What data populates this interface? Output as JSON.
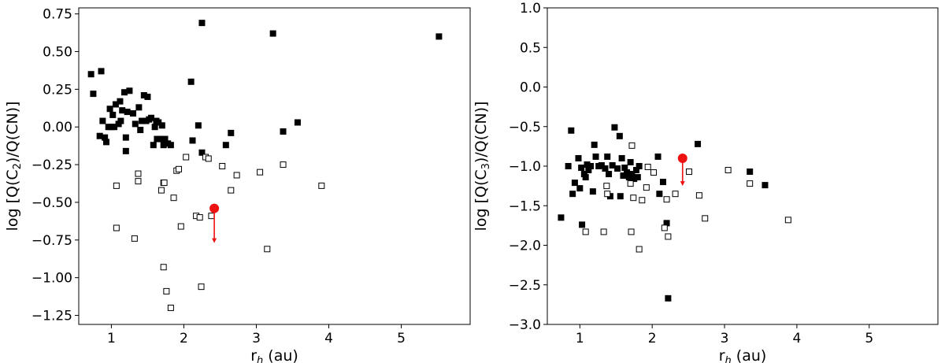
{
  "chart_data": [
    {
      "type": "scatter",
      "xlabel": "r_h (au)",
      "ylabel": "log [Q(C2)/Q(CN)]",
      "xlim": [
        0.55,
        5.95
      ],
      "ylim": [
        -1.31,
        0.79
      ],
      "xticks": [
        1,
        2,
        3,
        4,
        5
      ],
      "yticks": [
        -1.25,
        -1.0,
        -0.75,
        -0.5,
        -0.25,
        0.0,
        0.25,
        0.5,
        0.75
      ],
      "ytick_labels": [
        "−1.25",
        "−1.00",
        "−0.75",
        "−0.50",
        "−0.25",
        "0.00",
        "0.25",
        "0.50",
        "0.75"
      ],
      "grid": false,
      "series": [
        {
          "marker": "filled-square",
          "color": "#000000",
          "points": [
            [
              0.72,
              0.35
            ],
            [
              0.75,
              0.22
            ],
            [
              0.86,
              0.37
            ],
            [
              0.88,
              0.04
            ],
            [
              0.93,
              -0.1
            ],
            [
              0.96,
              0.0
            ],
            [
              0.98,
              0.12
            ],
            [
              1.0,
              0.0
            ],
            [
              1.02,
              0.08
            ],
            [
              1.04,
              0.0
            ],
            [
              1.06,
              0.15
            ],
            [
              1.1,
              0.02
            ],
            [
              1.12,
              0.17
            ],
            [
              1.13,
              0.04
            ],
            [
              1.15,
              0.11
            ],
            [
              1.18,
              0.23
            ],
            [
              1.2,
              -0.07
            ],
            [
              1.22,
              0.1
            ],
            [
              1.25,
              0.24
            ],
            [
              1.3,
              0.09
            ],
            [
              1.33,
              0.02
            ],
            [
              1.38,
              0.13
            ],
            [
              1.42,
              0.04
            ],
            [
              1.45,
              0.21
            ],
            [
              1.48,
              0.04
            ],
            [
              1.5,
              0.2
            ],
            [
              1.52,
              0.05
            ],
            [
              1.55,
              0.06
            ],
            [
              1.58,
              -0.12
            ],
            [
              1.6,
              0.0
            ],
            [
              1.62,
              0.04
            ],
            [
              1.63,
              -0.08
            ],
            [
              1.65,
              0.03
            ],
            [
              1.68,
              -0.08
            ],
            [
              1.7,
              0.01
            ],
            [
              1.72,
              -0.12
            ],
            [
              1.74,
              -0.08
            ],
            [
              1.78,
              -0.11
            ],
            [
              1.82,
              -0.12
            ],
            [
              2.1,
              0.3
            ],
            [
              2.12,
              -0.09
            ],
            [
              2.2,
              0.01
            ],
            [
              2.25,
              -0.17
            ],
            [
              2.25,
              0.69
            ],
            [
              2.65,
              -0.04
            ],
            [
              2.58,
              -0.12
            ],
            [
              3.23,
              0.62
            ],
            [
              3.37,
              -0.03
            ],
            [
              3.57,
              0.03
            ],
            [
              5.52,
              0.6
            ],
            [
              0.84,
              -0.06
            ],
            [
              0.91,
              -0.07
            ],
            [
              1.2,
              -0.16
            ],
            [
              1.4,
              -0.02
            ]
          ]
        },
        {
          "marker": "open-square",
          "color": "#000000",
          "points": [
            [
              1.07,
              -0.39
            ],
            [
              1.07,
              -0.67
            ],
            [
              1.32,
              -0.74
            ],
            [
              1.37,
              -0.31
            ],
            [
              1.37,
              -0.36
            ],
            [
              1.69,
              -0.42
            ],
            [
              1.72,
              -0.37
            ],
            [
              1.72,
              -0.93
            ],
            [
              1.73,
              -0.37
            ],
            [
              1.76,
              -1.09
            ],
            [
              1.82,
              -1.2
            ],
            [
              1.86,
              -0.47
            ],
            [
              1.9,
              -0.29
            ],
            [
              1.93,
              -0.28
            ],
            [
              1.96,
              -0.66
            ],
            [
              2.03,
              -0.2
            ],
            [
              2.17,
              -0.59
            ],
            [
              2.22,
              -0.6
            ],
            [
              2.24,
              -1.06
            ],
            [
              2.3,
              -0.2
            ],
            [
              2.34,
              -0.21
            ],
            [
              2.38,
              -0.59
            ],
            [
              2.53,
              -0.26
            ],
            [
              2.65,
              -0.42
            ],
            [
              2.73,
              -0.32
            ],
            [
              3.05,
              -0.3
            ],
            [
              3.15,
              -0.81
            ],
            [
              3.37,
              -0.25
            ],
            [
              3.9,
              -0.39
            ]
          ]
        },
        {
          "marker": "red-circle-upper-limit",
          "color": "#ee1111",
          "points": [
            [
              2.42,
              -0.54
            ]
          ],
          "arrow_to": -0.77
        }
      ]
    },
    {
      "type": "scatter",
      "xlabel": "r_h (au)",
      "ylabel": "log [Q(C3)/Q(CN)]",
      "xlim": [
        0.55,
        5.95
      ],
      "ylim": [
        -3.0,
        1.0
      ],
      "xticks": [
        1,
        2,
        3,
        4,
        5
      ],
      "yticks": [
        -3.0,
        -2.5,
        -2.0,
        -1.5,
        -1.0,
        -0.5,
        0.0,
        0.5,
        1.0
      ],
      "ytick_labels": [
        "−3.0",
        "−2.5",
        "−2.0",
        "−1.5",
        "−1.0",
        "−0.5",
        "0.0",
        "0.5",
        "1.0"
      ],
      "grid": false,
      "series": [
        {
          "marker": "filled-square",
          "color": "#000000",
          "points": [
            [
              0.74,
              -1.65
            ],
            [
              0.84,
              -1.0
            ],
            [
              0.88,
              -0.55
            ],
            [
              0.9,
              -1.35
            ],
            [
              0.93,
              -1.21
            ],
            [
              0.98,
              -0.9
            ],
            [
              1.0,
              -1.28
            ],
            [
              1.02,
              -1.02
            ],
            [
              1.03,
              -1.74
            ],
            [
              1.06,
              -1.1
            ],
            [
              1.08,
              -1.14
            ],
            [
              1.1,
              -0.98
            ],
            [
              1.12,
              -1.05
            ],
            [
              1.15,
              -1.0
            ],
            [
              1.18,
              -1.32
            ],
            [
              1.2,
              -0.73
            ],
            [
              1.22,
              -0.88
            ],
            [
              1.26,
              -1.0
            ],
            [
              1.3,
              -0.99
            ],
            [
              1.35,
              -1.03
            ],
            [
              1.38,
              -0.88
            ],
            [
              1.4,
              -1.1
            ],
            [
              1.42,
              -1.38
            ],
            [
              1.45,
              -0.99
            ],
            [
              1.48,
              -0.51
            ],
            [
              1.52,
              -1.03
            ],
            [
              1.55,
              -0.62
            ],
            [
              1.56,
              -1.38
            ],
            [
              1.58,
              -0.9
            ],
            [
              1.6,
              -1.12
            ],
            [
              1.62,
              -1.02
            ],
            [
              1.65,
              -1.08
            ],
            [
              1.68,
              -1.14
            ],
            [
              1.7,
              -0.95
            ],
            [
              1.72,
              -1.1
            ],
            [
              1.75,
              -1.16
            ],
            [
              1.78,
              -1.05
            ],
            [
              1.8,
              -1.14
            ],
            [
              1.82,
              -1.0
            ],
            [
              2.08,
              -0.88
            ],
            [
              2.1,
              -1.35
            ],
            [
              2.15,
              -1.2
            ],
            [
              2.2,
              -1.72
            ],
            [
              2.22,
              -2.67
            ],
            [
              2.63,
              -0.72
            ],
            [
              3.35,
              -1.07
            ],
            [
              3.56,
              -1.24
            ]
          ]
        },
        {
          "marker": "open-square",
          "color": "#000000",
          "points": [
            [
              1.08,
              -1.83
            ],
            [
              1.33,
              -1.83
            ],
            [
              1.37,
              -1.25
            ],
            [
              1.38,
              -1.35
            ],
            [
              1.7,
              -1.22
            ],
            [
              1.71,
              -1.83
            ],
            [
              1.72,
              -0.74
            ],
            [
              1.74,
              -1.4
            ],
            [
              1.82,
              -2.05
            ],
            [
              1.86,
              -1.43
            ],
            [
              1.92,
              -1.27
            ],
            [
              1.94,
              -1.01
            ],
            [
              2.02,
              -1.08
            ],
            [
              2.17,
              -1.78
            ],
            [
              2.2,
              -1.42
            ],
            [
              2.22,
              -1.89
            ],
            [
              2.32,
              -1.35
            ],
            [
              2.51,
              -1.07
            ],
            [
              2.65,
              -1.37
            ],
            [
              2.73,
              -1.66
            ],
            [
              3.05,
              -1.05
            ],
            [
              3.35,
              -1.22
            ],
            [
              3.88,
              -1.68
            ]
          ]
        },
        {
          "marker": "red-circle-upper-limit",
          "color": "#ee1111",
          "points": [
            [
              2.42,
              -0.9
            ]
          ],
          "arrow_to": -1.25
        }
      ]
    }
  ]
}
